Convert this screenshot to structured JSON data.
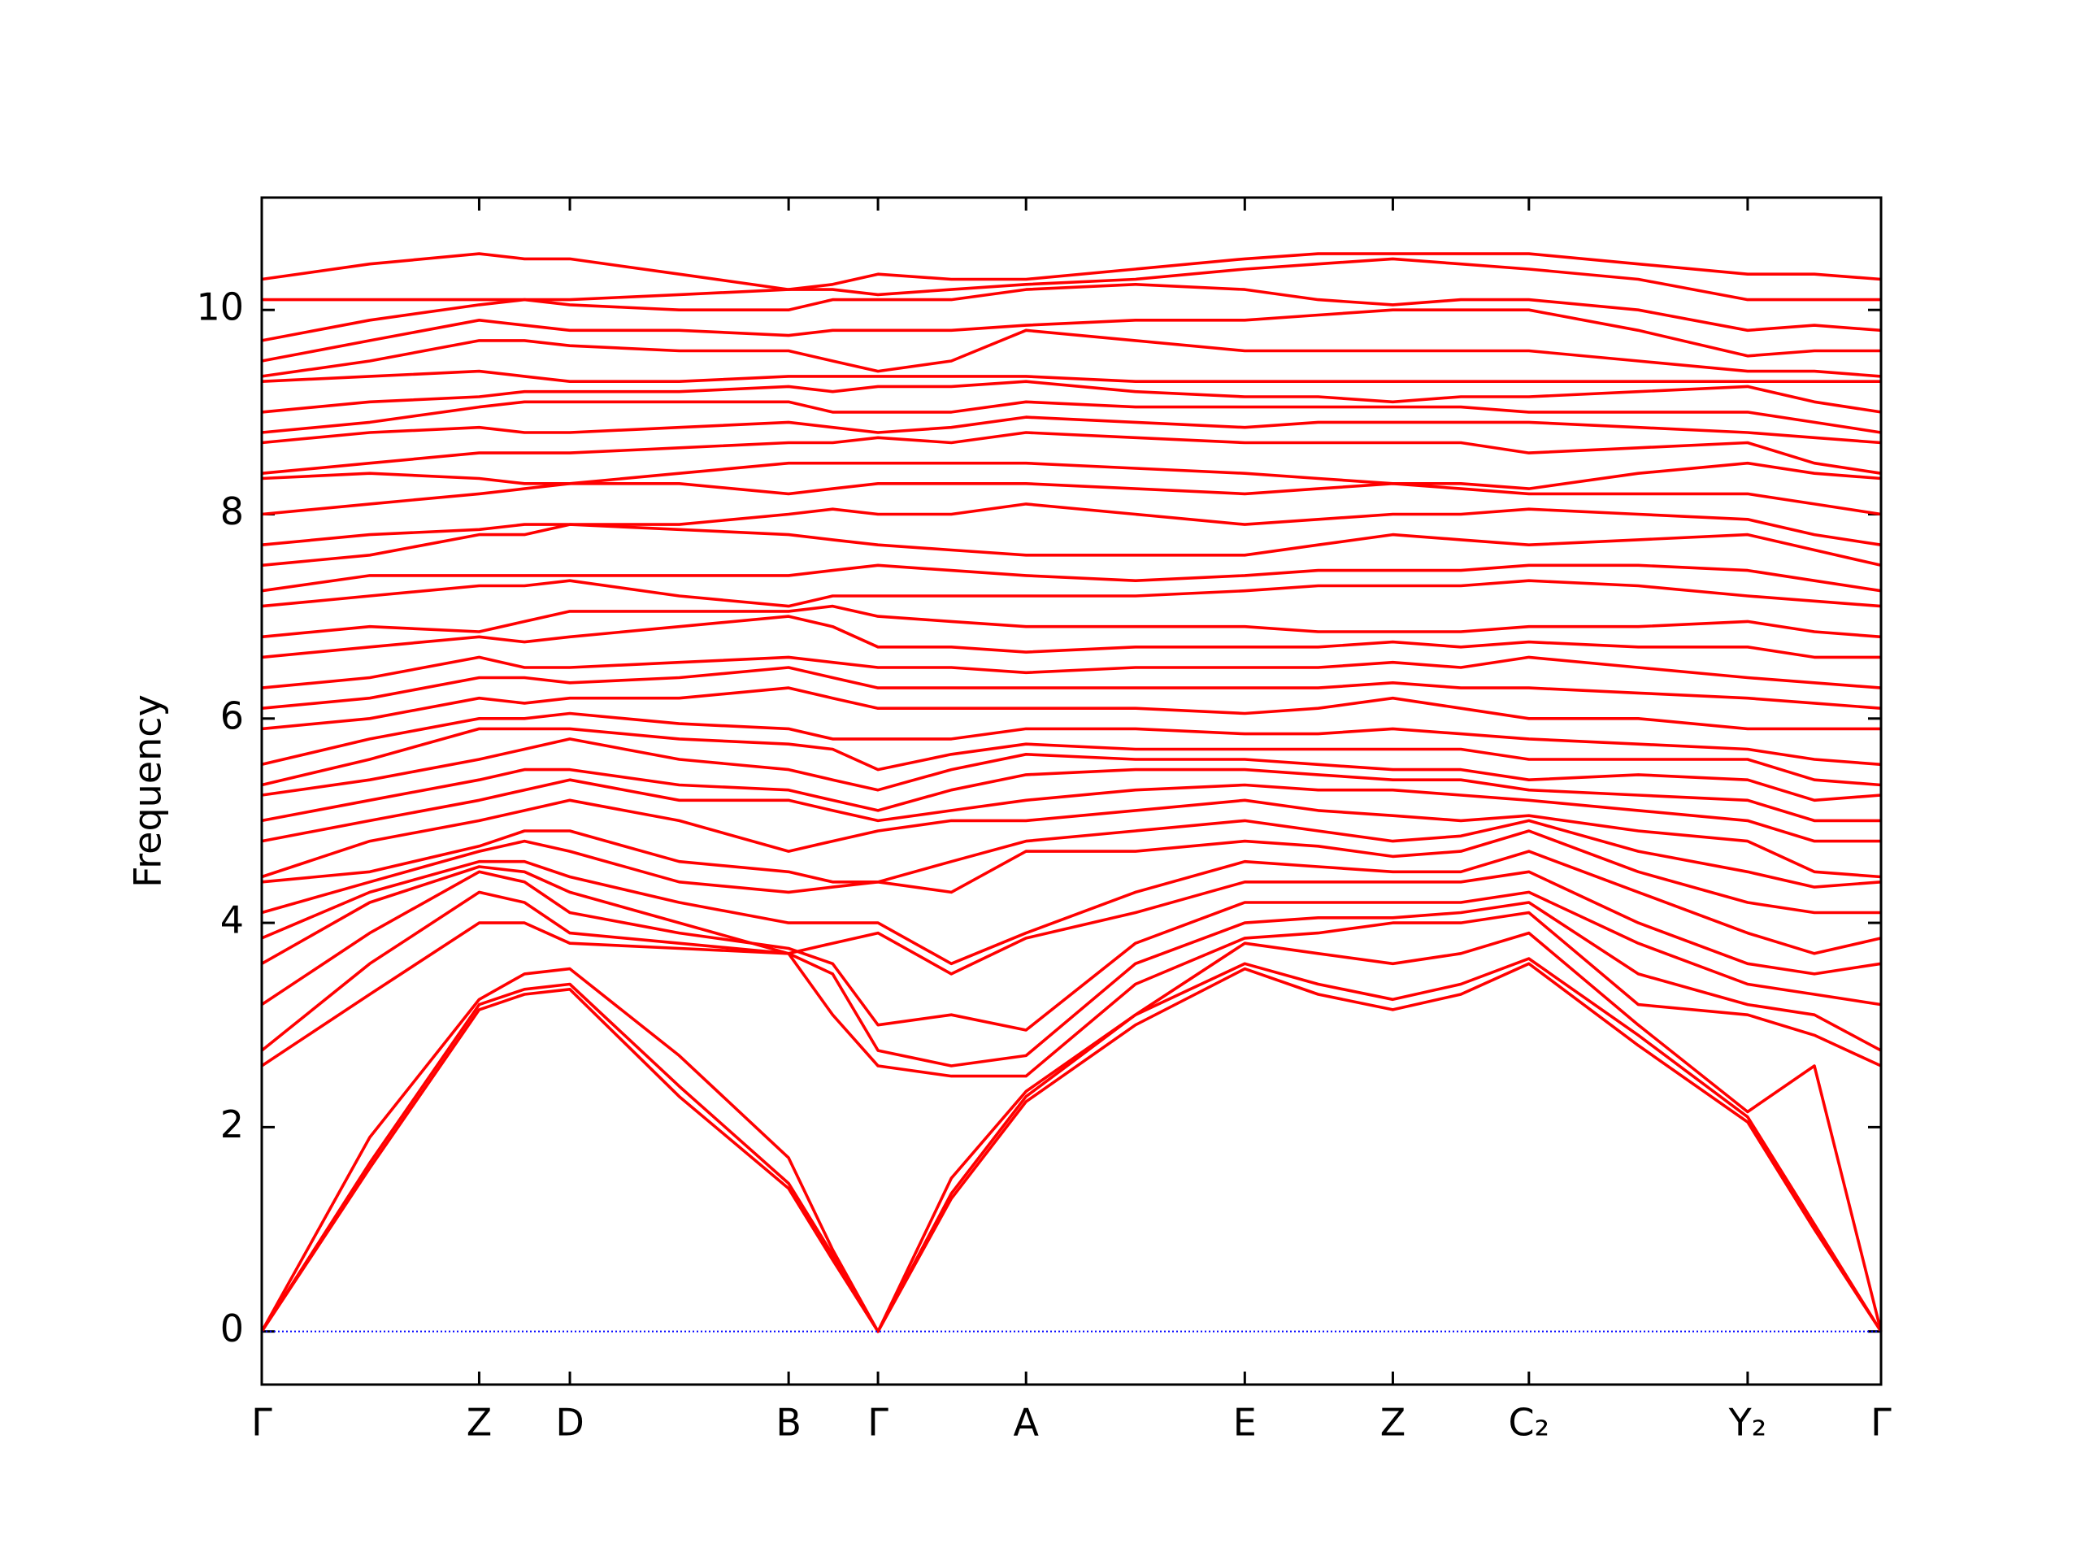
{
  "chart_data": {
    "type": "line",
    "ylabel": "Frequency",
    "color": "#ff0000",
    "zero_line": {
      "value": 0,
      "color": "#0000ff"
    },
    "xlim": [
      0,
      1214
    ],
    "ylim": [
      -0.52,
      11.1
    ],
    "yticks": [
      0,
      2,
      4,
      6,
      8,
      10
    ],
    "xticks": [
      {
        "value": 0,
        "label": "Γ"
      },
      {
        "value": 163,
        "label": "Z"
      },
      {
        "value": 231,
        "label": "D"
      },
      {
        "value": 395,
        "label": "B"
      },
      {
        "value": 462,
        "label": "Γ"
      },
      {
        "value": 573,
        "label": "A"
      },
      {
        "value": 737,
        "label": "E"
      },
      {
        "value": 848,
        "label": "Z"
      },
      {
        "value": 950,
        "label": "C₂"
      },
      {
        "value": 1114,
        "label": "Y₂"
      },
      {
        "value": 1214,
        "label": "Γ"
      }
    ],
    "x": [
      0,
      81,
      163,
      197,
      231,
      313,
      395,
      428,
      462,
      517,
      573,
      655,
      737,
      792,
      848,
      899,
      950,
      1032,
      1114,
      1164,
      1214
    ],
    "series": [
      {
        "values": [
          0,
          1.6,
          3.15,
          3.3,
          3.35,
          2.3,
          1.4,
          0.7,
          0,
          1.3,
          2.25,
          3.0,
          3.55,
          3.3,
          3.15,
          3.3,
          3.6,
          2.8,
          2.05,
          1.0,
          0
        ]
      },
      {
        "values": [
          0,
          1.65,
          3.2,
          3.35,
          3.4,
          2.4,
          1.45,
          0.75,
          0,
          1.35,
          2.3,
          3.1,
          3.6,
          3.4,
          3.25,
          3.4,
          3.65,
          2.9,
          2.1,
          1.05,
          0
        ]
      },
      {
        "values": [
          0,
          1.9,
          3.25,
          3.5,
          3.55,
          2.7,
          1.7,
          0.8,
          0,
          1.5,
          2.35,
          3.1,
          3.8,
          3.7,
          3.6,
          3.7,
          3.9,
          3.0,
          2.15,
          2.6,
          0
        ]
      },
      {
        "values": [
          2.6,
          3.3,
          4.0,
          4.0,
          3.8,
          3.75,
          3.7,
          3.1,
          2.6,
          2.5,
          2.5,
          3.4,
          3.85,
          3.9,
          4.0,
          4.0,
          4.1,
          3.2,
          3.1,
          2.9,
          2.6
        ]
      },
      {
        "values": [
          2.75,
          3.6,
          4.3,
          4.2,
          3.9,
          3.8,
          3.7,
          3.5,
          2.75,
          2.6,
          2.7,
          3.6,
          4.0,
          4.05,
          4.05,
          4.1,
          4.2,
          3.5,
          3.2,
          3.1,
          2.75
        ]
      },
      {
        "values": [
          3.2,
          3.9,
          4.5,
          4.4,
          4.1,
          3.9,
          3.75,
          3.6,
          3.0,
          3.1,
          2.95,
          3.8,
          4.2,
          4.2,
          4.2,
          4.2,
          4.3,
          3.8,
          3.4,
          3.3,
          3.2
        ]
      },
      {
        "values": [
          3.6,
          4.2,
          4.55,
          4.5,
          4.3,
          4.0,
          3.7,
          3.8,
          3.9,
          3.5,
          3.85,
          4.1,
          4.4,
          4.4,
          4.4,
          4.4,
          4.5,
          4.0,
          3.6,
          3.5,
          3.6
        ]
      },
      {
        "values": [
          3.85,
          4.3,
          4.6,
          4.6,
          4.45,
          4.2,
          4.0,
          4.0,
          4.0,
          3.6,
          3.9,
          4.3,
          4.6,
          4.55,
          4.5,
          4.5,
          4.7,
          4.3,
          3.9,
          3.7,
          3.85
        ]
      },
      {
        "values": [
          4.1,
          4.4,
          4.7,
          4.8,
          4.7,
          4.4,
          4.3,
          4.35,
          4.4,
          4.3,
          4.7,
          4.7,
          4.8,
          4.75,
          4.65,
          4.7,
          4.9,
          4.5,
          4.2,
          4.1,
          4.1
        ]
      },
      {
        "values": [
          4.4,
          4.5,
          4.75,
          4.9,
          4.9,
          4.6,
          4.5,
          4.4,
          4.4,
          4.6,
          4.8,
          4.9,
          5.0,
          4.9,
          4.8,
          4.85,
          5.0,
          4.7,
          4.5,
          4.35,
          4.4
        ]
      },
      {
        "values": [
          4.45,
          4.8,
          5.0,
          5.1,
          5.2,
          5.0,
          4.7,
          4.8,
          4.9,
          5.0,
          5.0,
          5.1,
          5.2,
          5.1,
          5.05,
          5.0,
          5.05,
          4.9,
          4.8,
          4.5,
          4.45
        ]
      },
      {
        "values": [
          4.8,
          5.0,
          5.2,
          5.3,
          5.4,
          5.2,
          5.2,
          5.1,
          5.0,
          5.1,
          5.2,
          5.3,
          5.35,
          5.3,
          5.3,
          5.25,
          5.2,
          5.1,
          5.0,
          4.8,
          4.8
        ]
      },
      {
        "values": [
          5.0,
          5.2,
          5.4,
          5.5,
          5.5,
          5.35,
          5.3,
          5.2,
          5.1,
          5.3,
          5.45,
          5.5,
          5.5,
          5.45,
          5.4,
          5.4,
          5.3,
          5.25,
          5.2,
          5.0,
          5.0
        ]
      },
      {
        "values": [
          5.25,
          5.4,
          5.6,
          5.7,
          5.8,
          5.6,
          5.5,
          5.4,
          5.3,
          5.5,
          5.65,
          5.6,
          5.6,
          5.55,
          5.5,
          5.5,
          5.4,
          5.45,
          5.4,
          5.2,
          5.25
        ]
      },
      {
        "values": [
          5.35,
          5.6,
          5.9,
          5.9,
          5.9,
          5.8,
          5.75,
          5.7,
          5.5,
          5.65,
          5.75,
          5.7,
          5.7,
          5.7,
          5.7,
          5.7,
          5.6,
          5.6,
          5.6,
          5.4,
          5.35
        ]
      },
      {
        "values": [
          5.55,
          5.8,
          6.0,
          6.0,
          6.05,
          5.95,
          5.9,
          5.8,
          5.8,
          5.8,
          5.9,
          5.9,
          5.85,
          5.85,
          5.9,
          5.85,
          5.8,
          5.75,
          5.7,
          5.6,
          5.55
        ]
      },
      {
        "values": [
          5.9,
          6.0,
          6.2,
          6.15,
          6.2,
          6.2,
          6.3,
          6.2,
          6.1,
          6.1,
          6.1,
          6.1,
          6.05,
          6.1,
          6.2,
          6.1,
          6.0,
          6.0,
          5.9,
          5.9,
          5.9
        ]
      },
      {
        "values": [
          6.1,
          6.2,
          6.4,
          6.4,
          6.35,
          6.4,
          6.5,
          6.4,
          6.3,
          6.3,
          6.3,
          6.3,
          6.3,
          6.3,
          6.35,
          6.3,
          6.3,
          6.25,
          6.2,
          6.15,
          6.1
        ]
      },
      {
        "values": [
          6.3,
          6.4,
          6.6,
          6.5,
          6.5,
          6.55,
          6.6,
          6.55,
          6.5,
          6.5,
          6.45,
          6.5,
          6.5,
          6.5,
          6.55,
          6.5,
          6.6,
          6.5,
          6.4,
          6.35,
          6.3
        ]
      },
      {
        "values": [
          6.6,
          6.7,
          6.8,
          6.75,
          6.8,
          6.9,
          7.0,
          6.9,
          6.7,
          6.7,
          6.65,
          6.7,
          6.7,
          6.7,
          6.75,
          6.7,
          6.75,
          6.7,
          6.7,
          6.6,
          6.6
        ]
      },
      {
        "values": [
          6.8,
          6.9,
          6.85,
          6.95,
          7.05,
          7.05,
          7.05,
          7.1,
          7.0,
          6.95,
          6.9,
          6.9,
          6.9,
          6.85,
          6.85,
          6.85,
          6.9,
          6.9,
          6.95,
          6.85,
          6.8
        ]
      },
      {
        "values": [
          7.1,
          7.2,
          7.3,
          7.3,
          7.35,
          7.2,
          7.1,
          7.2,
          7.2,
          7.2,
          7.2,
          7.2,
          7.25,
          7.3,
          7.3,
          7.3,
          7.35,
          7.3,
          7.2,
          7.15,
          7.1
        ]
      },
      {
        "values": [
          7.25,
          7.4,
          7.4,
          7.4,
          7.4,
          7.4,
          7.4,
          7.45,
          7.5,
          7.45,
          7.4,
          7.35,
          7.4,
          7.45,
          7.45,
          7.45,
          7.5,
          7.5,
          7.45,
          7.35,
          7.25
        ]
      },
      {
        "values": [
          7.5,
          7.6,
          7.8,
          7.8,
          7.9,
          7.85,
          7.8,
          7.75,
          7.7,
          7.65,
          7.6,
          7.6,
          7.6,
          7.7,
          7.8,
          7.75,
          7.7,
          7.75,
          7.8,
          7.65,
          7.5
        ]
      },
      {
        "values": [
          7.7,
          7.8,
          7.85,
          7.9,
          7.9,
          7.9,
          8.0,
          8.05,
          8.0,
          8.0,
          8.1,
          8.0,
          7.9,
          7.95,
          8.0,
          8.0,
          8.05,
          8.0,
          7.95,
          7.8,
          7.7
        ]
      },
      {
        "values": [
          8.0,
          8.1,
          8.2,
          8.25,
          8.3,
          8.3,
          8.2,
          8.25,
          8.3,
          8.3,
          8.3,
          8.25,
          8.2,
          8.25,
          8.3,
          8.25,
          8.2,
          8.2,
          8.2,
          8.1,
          8.0
        ]
      },
      {
        "values": [
          8.35,
          8.4,
          8.35,
          8.3,
          8.3,
          8.4,
          8.5,
          8.5,
          8.5,
          8.5,
          8.5,
          8.45,
          8.4,
          8.35,
          8.3,
          8.3,
          8.25,
          8.4,
          8.5,
          8.4,
          8.35
        ]
      },
      {
        "values": [
          8.4,
          8.5,
          8.6,
          8.6,
          8.6,
          8.65,
          8.7,
          8.7,
          8.75,
          8.7,
          8.8,
          8.75,
          8.7,
          8.7,
          8.7,
          8.7,
          8.6,
          8.65,
          8.7,
          8.5,
          8.4
        ]
      },
      {
        "values": [
          8.7,
          8.8,
          8.85,
          8.8,
          8.8,
          8.85,
          8.9,
          8.85,
          8.8,
          8.85,
          8.95,
          8.9,
          8.85,
          8.9,
          8.9,
          8.9,
          8.9,
          8.85,
          8.8,
          8.75,
          8.7
        ]
      },
      {
        "values": [
          8.8,
          8.9,
          9.05,
          9.1,
          9.1,
          9.1,
          9.1,
          9.0,
          9.0,
          9.0,
          9.1,
          9.05,
          9.05,
          9.05,
          9.05,
          9.05,
          9.0,
          9.0,
          9.0,
          8.9,
          8.8
        ]
      },
      {
        "values": [
          9.0,
          9.1,
          9.15,
          9.2,
          9.2,
          9.2,
          9.25,
          9.2,
          9.25,
          9.25,
          9.3,
          9.2,
          9.15,
          9.15,
          9.1,
          9.15,
          9.15,
          9.2,
          9.25,
          9.1,
          9.0
        ]
      },
      {
        "values": [
          9.3,
          9.35,
          9.4,
          9.35,
          9.3,
          9.3,
          9.35,
          9.35,
          9.35,
          9.35,
          9.35,
          9.3,
          9.3,
          9.3,
          9.3,
          9.3,
          9.3,
          9.3,
          9.3,
          9.3,
          9.3
        ]
      },
      {
        "values": [
          9.35,
          9.5,
          9.7,
          9.7,
          9.65,
          9.6,
          9.6,
          9.5,
          9.4,
          9.5,
          9.8,
          9.7,
          9.6,
          9.6,
          9.6,
          9.6,
          9.6,
          9.5,
          9.4,
          9.4,
          9.35
        ]
      },
      {
        "values": [
          9.5,
          9.7,
          9.9,
          9.85,
          9.8,
          9.8,
          9.75,
          9.8,
          9.8,
          9.8,
          9.85,
          9.9,
          9.9,
          9.95,
          10.0,
          10.0,
          10.0,
          9.8,
          9.55,
          9.6,
          9.6
        ]
      },
      {
        "values": [
          9.7,
          9.9,
          10.05,
          10.1,
          10.05,
          10.0,
          10.0,
          10.1,
          10.1,
          10.1,
          10.2,
          10.25,
          10.2,
          10.1,
          10.05,
          10.1,
          10.1,
          10.0,
          9.8,
          9.85,
          9.8
        ]
      },
      {
        "values": [
          10.1,
          10.1,
          10.1,
          10.1,
          10.1,
          10.15,
          10.2,
          10.2,
          10.15,
          10.2,
          10.25,
          10.3,
          10.4,
          10.45,
          10.5,
          10.45,
          10.4,
          10.3,
          10.1,
          10.1,
          10.1
        ]
      },
      {
        "values": [
          10.3,
          10.45,
          10.55,
          10.5,
          10.5,
          10.35,
          10.2,
          10.25,
          10.35,
          10.3,
          10.3,
          10.4,
          10.5,
          10.55,
          10.55,
          10.55,
          10.55,
          10.45,
          10.35,
          10.35,
          10.3
        ]
      }
    ]
  }
}
